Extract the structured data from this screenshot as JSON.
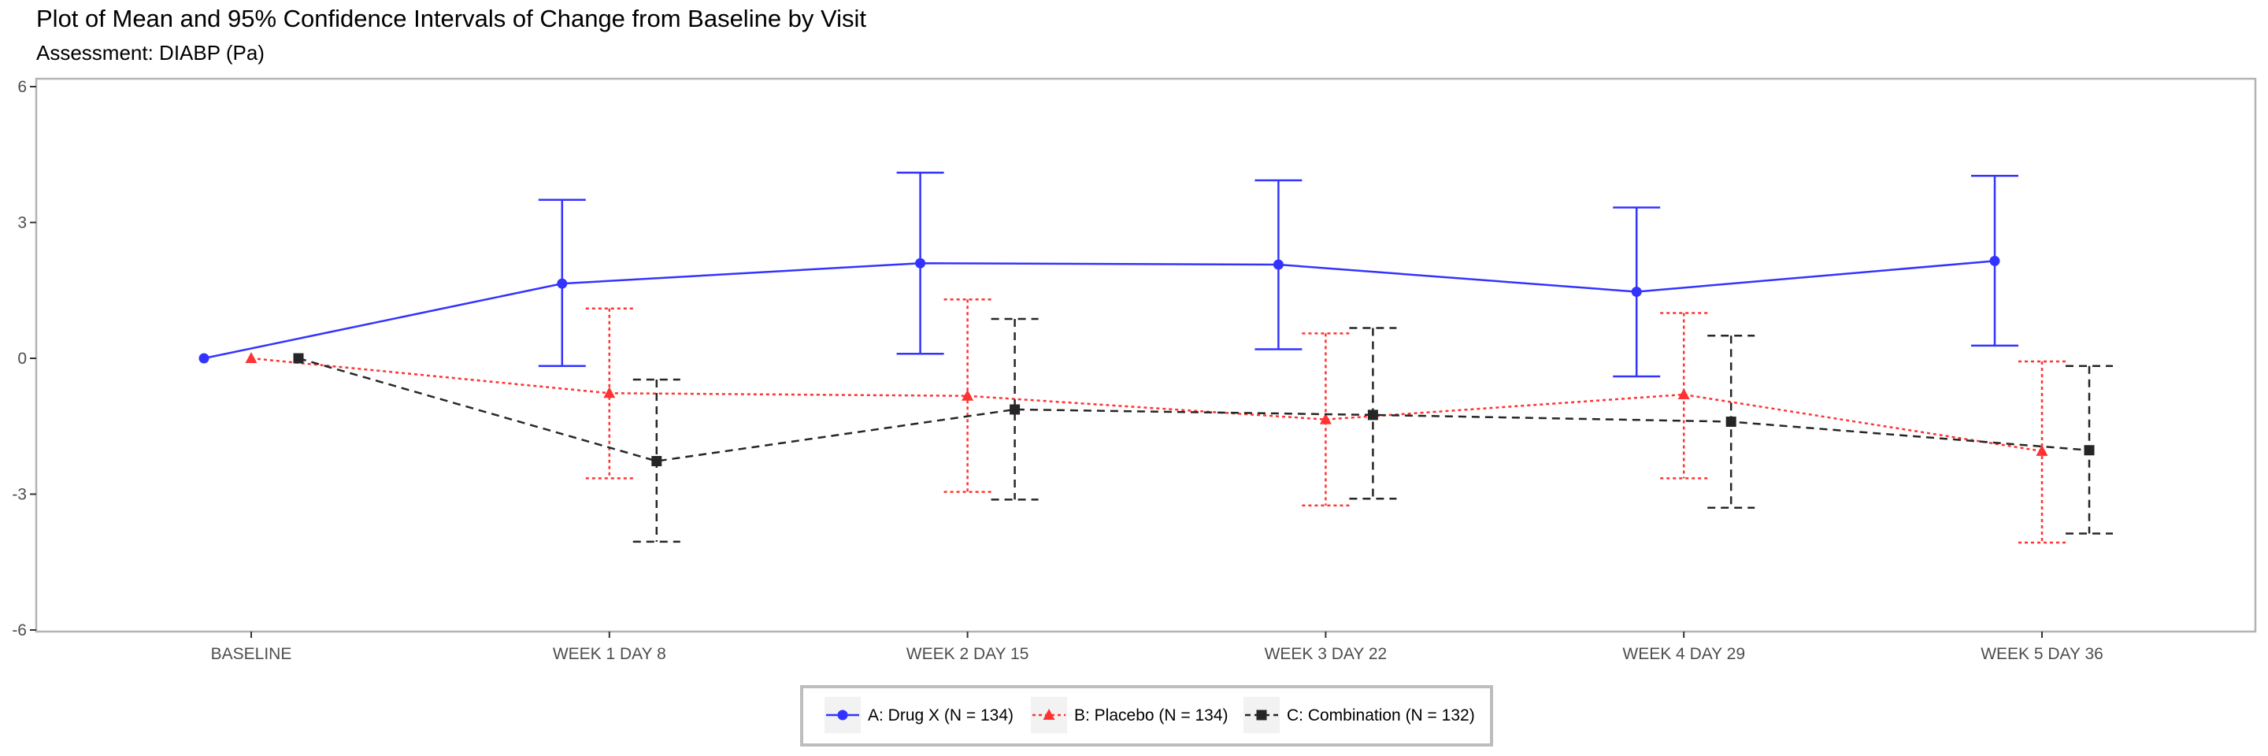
{
  "chart_data": {
    "type": "line",
    "title": "Plot of Mean and 95% Confidence Intervals of Change from Baseline by Visit",
    "subtitle": "Assessment: DIABP (Pa)",
    "xlabel": "",
    "ylabel": "",
    "categories": [
      "BASELINE",
      "WEEK 1 DAY 8",
      "WEEK 2 DAY 15",
      "WEEK 3 DAY 22",
      "WEEK 4 DAY 29",
      "WEEK 5 DAY 36"
    ],
    "ylim": [
      -6,
      6
    ],
    "yticks": [
      -6,
      -3,
      0,
      3,
      6
    ],
    "grid": false,
    "legend_position": "bottom",
    "series": [
      {
        "name": "A: Drug X (N = 134)",
        "color": "#3333ff",
        "marker": "circle",
        "line": "solid",
        "mean": [
          0,
          1.65,
          2.1,
          2.07,
          1.47,
          2.15
        ],
        "lower": [
          0,
          -0.17,
          0.1,
          0.2,
          -0.4,
          0.28
        ],
        "upper": [
          0,
          3.5,
          4.1,
          3.93,
          3.33,
          4.03
        ]
      },
      {
        "name": "B: Placebo (N = 134)",
        "color": "#ff3333",
        "marker": "triangle",
        "line": "dotted",
        "mean": [
          0,
          -0.77,
          -0.83,
          -1.35,
          -0.8,
          -2.05
        ],
        "lower": [
          0,
          -2.65,
          -2.95,
          -3.25,
          -2.65,
          -4.07
        ],
        "upper": [
          0,
          1.1,
          1.3,
          0.55,
          1.0,
          -0.07
        ]
      },
      {
        "name": "C: Combination (N = 132)",
        "color": "#262626",
        "marker": "square",
        "line": "dashed",
        "mean": [
          0,
          -2.27,
          -1.13,
          -1.25,
          -1.4,
          -2.03
        ],
        "lower": [
          0,
          -4.05,
          -3.12,
          -3.1,
          -3.3,
          -3.87
        ],
        "upper": [
          0,
          -0.47,
          0.87,
          0.67,
          0.5,
          -0.17
        ]
      }
    ]
  }
}
